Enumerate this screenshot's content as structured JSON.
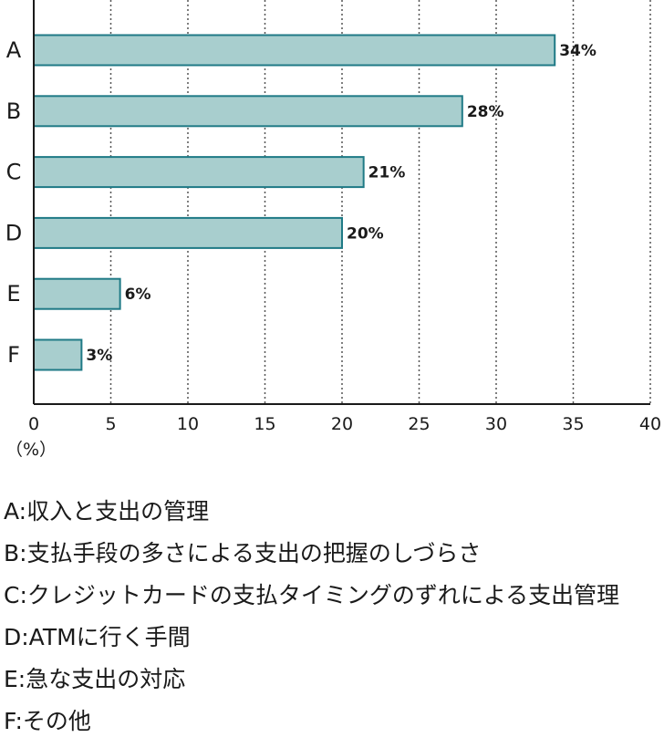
{
  "chart_data": {
    "type": "bar",
    "orientation": "horizontal",
    "categories": [
      "A",
      "B",
      "C",
      "D",
      "E",
      "F"
    ],
    "values": [
      33.8,
      27.8,
      21.4,
      20.0,
      5.6,
      3.1
    ],
    "data_labels": [
      "34%",
      "28%",
      "21%",
      "20%",
      "6%",
      "3%"
    ],
    "xlim": [
      0,
      40
    ],
    "xticks": [
      "0",
      "5",
      "10",
      "15",
      "20",
      "25",
      "30",
      "35",
      "40"
    ],
    "xunit": "（%）",
    "grid": "vertical-dotted",
    "bar_color": "#a8cece",
    "bar_edge_color": "#1f7a86"
  },
  "legend": [
    "A:収入と支出の管理",
    "B:支払手段の多さによる支出の把握のしづらさ",
    "C:クレジットカードの支払タイミングのずれによる支出管理",
    "D:ATMに行く手間",
    "E:急な支出の対応",
    "F:その他"
  ]
}
